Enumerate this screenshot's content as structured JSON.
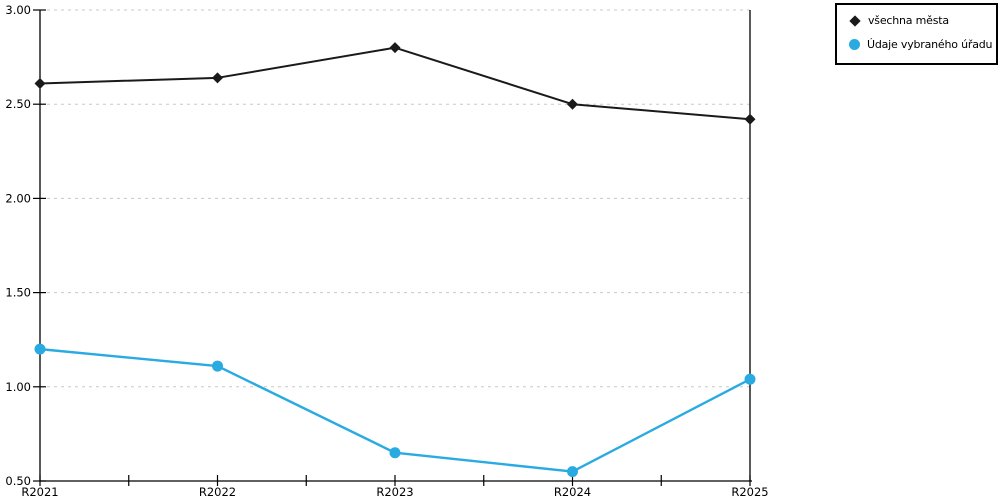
{
  "chart_data": {
    "type": "line",
    "title": "",
    "xlabel": "",
    "ylabel": "",
    "categories": [
      "R2021",
      "R2022",
      "R2023",
      "R2024",
      "R2025"
    ],
    "series": [
      {
        "name": "všechna města",
        "values": [
          2.61,
          2.64,
          2.8,
          2.5,
          2.42
        ],
        "color": "#1a1a1a",
        "marker": "diamond"
      },
      {
        "name": "Údaje vybraného úřadu",
        "values": [
          1.2,
          1.11,
          0.65,
          0.55,
          1.04
        ],
        "color": "#29abe2",
        "marker": "circle"
      }
    ],
    "ylim": [
      0.5,
      3.0
    ],
    "ytick_step": 0.5,
    "ytick_labels": [
      "0.50",
      "1.00",
      "1.50",
      "2.00",
      "2.50",
      "3.00"
    ],
    "x_minor_ticks_between_categories": 1,
    "grid": "horizontal-dashed",
    "grid_color": "#c8c8c8",
    "axis_color": "#000000",
    "text_color": "#000000",
    "background_color": "#ffffff",
    "right_frame_line": true,
    "legend_position": "top-right"
  }
}
